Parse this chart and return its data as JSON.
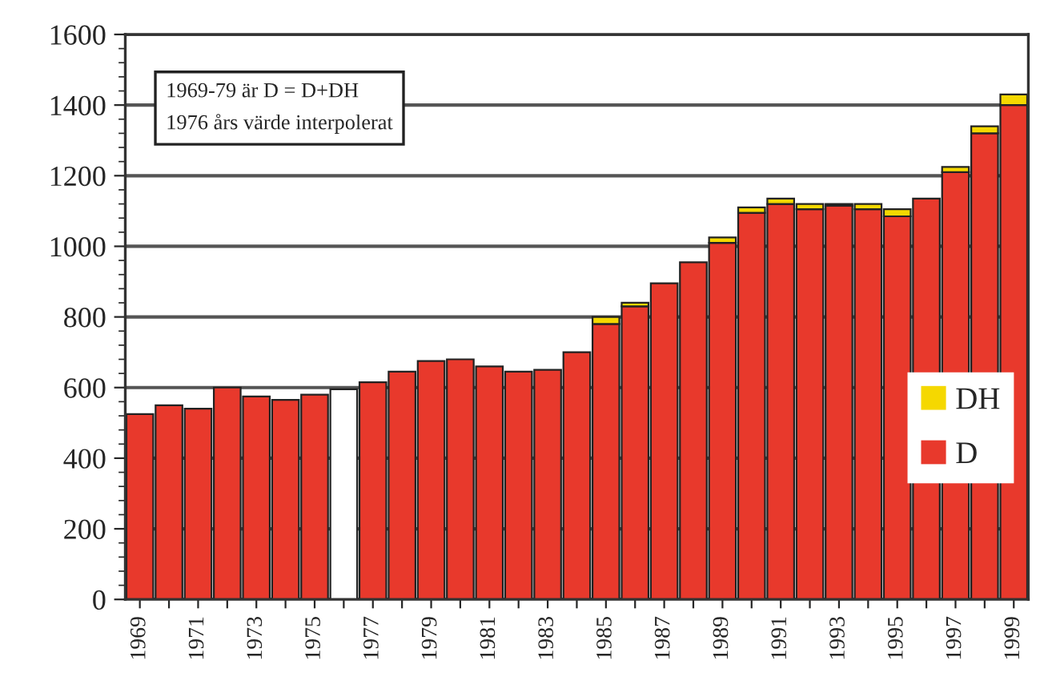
{
  "chart_data": {
    "type": "bar",
    "stacked": true,
    "categories": [
      "1969",
      null,
      "1971",
      null,
      "1973",
      null,
      "1975",
      null,
      "1977",
      null,
      "1979",
      null,
      "1981",
      null,
      "1983",
      null,
      "1985",
      null,
      "1987",
      null,
      "1989",
      null,
      "1991",
      null,
      "1993",
      null,
      "1995",
      null,
      "1997",
      null,
      "1999"
    ],
    "series": [
      {
        "name": "D",
        "color": "#e8392c",
        "colors": [
          "#e8392c",
          "#e8392c",
          "#e8392c",
          "#e8392c",
          "#e8392c",
          "#e8392c",
          "#e8392c",
          "#ffffff",
          "#e8392c",
          "#e8392c",
          "#e8392c",
          "#e8392c",
          "#e8392c",
          "#e8392c",
          "#e8392c",
          "#e8392c",
          "#e8392c",
          "#e8392c",
          "#e8392c",
          "#e8392c",
          "#e8392c",
          "#e8392c",
          "#e8392c",
          "#e8392c",
          "#e8392c",
          "#e8392c",
          "#e8392c",
          "#e8392c",
          "#e8392c",
          "#e8392c",
          "#e8392c"
        ],
        "values": [
          525,
          550,
          540,
          600,
          575,
          565,
          580,
          595,
          615,
          645,
          675,
          680,
          660,
          645,
          650,
          700,
          780,
          830,
          895,
          955,
          1010,
          1095,
          1120,
          1105,
          1115,
          1105,
          1085,
          1135,
          1210,
          1320,
          1400
        ]
      },
      {
        "name": "DH",
        "color": "#f5d800",
        "values": [
          null,
          null,
          null,
          null,
          null,
          null,
          null,
          null,
          null,
          null,
          null,
          null,
          null,
          null,
          null,
          null,
          20,
          10,
          null,
          null,
          15,
          15,
          15,
          15,
          5,
          15,
          20,
          null,
          15,
          20,
          30
        ]
      }
    ],
    "ylim": [
      0,
      1600
    ],
    "yticks": [
      0,
      200,
      400,
      600,
      800,
      1000,
      1200,
      1400,
      1600
    ],
    "grid": "y",
    "legend": "lower right",
    "annotations": [
      "1969-79 är D = D+DH",
      "1976 års värde interpolerat"
    ]
  }
}
